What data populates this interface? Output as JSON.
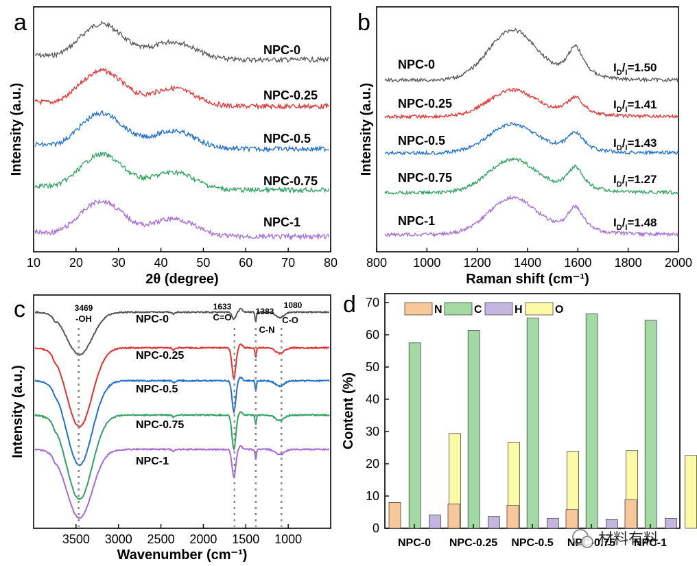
{
  "chart_data": [
    {
      "panel": "a",
      "type": "line",
      "xlabel": "2θ (degree)",
      "ylabel": "Intensity (a.u.)",
      "xlim": [
        10,
        80
      ],
      "xticks": [
        10,
        20,
        30,
        40,
        50,
        60,
        70,
        80
      ],
      "series": [
        {
          "name": "NPC-0",
          "color": "#555555",
          "peaks": [
            26,
            43
          ]
        },
        {
          "name": "NPC-0.25",
          "color": "#e5302f",
          "peaks": [
            26,
            43
          ]
        },
        {
          "name": "NPC-0.5",
          "color": "#1f6fd0",
          "peaks": [
            26,
            43
          ]
        },
        {
          "name": "NPC-0.75",
          "color": "#2ea262",
          "peaks": [
            26,
            43
          ]
        },
        {
          "name": "NPC-1",
          "color": "#a36ad8",
          "peaks": [
            26,
            43
          ]
        }
      ]
    },
    {
      "panel": "b",
      "type": "line",
      "xlabel": "Raman shift (cm⁻¹)",
      "ylabel": "Intensity (a.u.)",
      "xlim": [
        800,
        2000
      ],
      "xticks": [
        800,
        1000,
        1200,
        1400,
        1600,
        1800,
        2000
      ],
      "ratio_label": "ID/IG",
      "series": [
        {
          "name": "NPC-0",
          "color": "#555555",
          "ratio": "1.50",
          "peaks": [
            1340,
            1590
          ]
        },
        {
          "name": "NPC-0.25",
          "color": "#e5302f",
          "ratio": "1.41",
          "peaks": [
            1340,
            1590
          ]
        },
        {
          "name": "NPC-0.5",
          "color": "#1f6fd0",
          "ratio": "1.43",
          "peaks": [
            1340,
            1590
          ]
        },
        {
          "name": "NPC-0.75",
          "color": "#2ea262",
          "ratio": "1.27",
          "peaks": [
            1340,
            1590
          ]
        },
        {
          "name": "NPC-1",
          "color": "#a36ad8",
          "ratio": "1.48",
          "peaks": [
            1340,
            1590
          ]
        }
      ]
    },
    {
      "panel": "c",
      "type": "line",
      "xlabel": "Wavenumber (cm⁻¹)",
      "ylabel": "Intensity (a.u.)",
      "xlim": [
        4000,
        500
      ],
      "xticks": [
        3500,
        3000,
        2500,
        2000,
        1500,
        1000
      ],
      "annotations": [
        {
          "wavenumber": 3469,
          "label": "3469",
          "group": "-OH"
        },
        {
          "wavenumber": 1633,
          "label": "1633",
          "group": "C=O"
        },
        {
          "wavenumber": 1383,
          "label": "1383",
          "group": "C-N"
        },
        {
          "wavenumber": 1080,
          "label": "1080",
          "group": "C-O"
        }
      ],
      "series": [
        {
          "name": "NPC-0",
          "color": "#555555"
        },
        {
          "name": "NPC-0.25",
          "color": "#e5302f"
        },
        {
          "name": "NPC-0.5",
          "color": "#1f6fd0"
        },
        {
          "name": "NPC-0.75",
          "color": "#2ea262"
        },
        {
          "name": "NPC-1",
          "color": "#a36ad8"
        }
      ]
    },
    {
      "panel": "d",
      "type": "bar",
      "ylabel": "Content (%)",
      "ylim": [
        0,
        70
      ],
      "yticks": [
        0,
        10,
        20,
        30,
        40,
        50,
        60,
        70
      ],
      "categories": [
        "NPC-0",
        "NPC-0.25",
        "NPC-0.5",
        "NPC-0.75",
        "NPC-1"
      ],
      "series": [
        {
          "name": "N",
          "color": "#f8c89a",
          "values": [
            8.0,
            7.5,
            7.1,
            5.8,
            8.8
          ]
        },
        {
          "name": "C",
          "color": "#a3d9a3",
          "values": [
            57.5,
            61.4,
            65.2,
            66.5,
            64.5
          ]
        },
        {
          "name": "H",
          "color": "#c3b6e0",
          "values": [
            4.1,
            3.7,
            3.1,
            2.7,
            3.1
          ]
        },
        {
          "name": "O",
          "color": "#fbfba6",
          "values": [
            29.4,
            26.7,
            23.8,
            24.1,
            22.6
          ]
        }
      ]
    }
  ],
  "watermark": "材料有料"
}
